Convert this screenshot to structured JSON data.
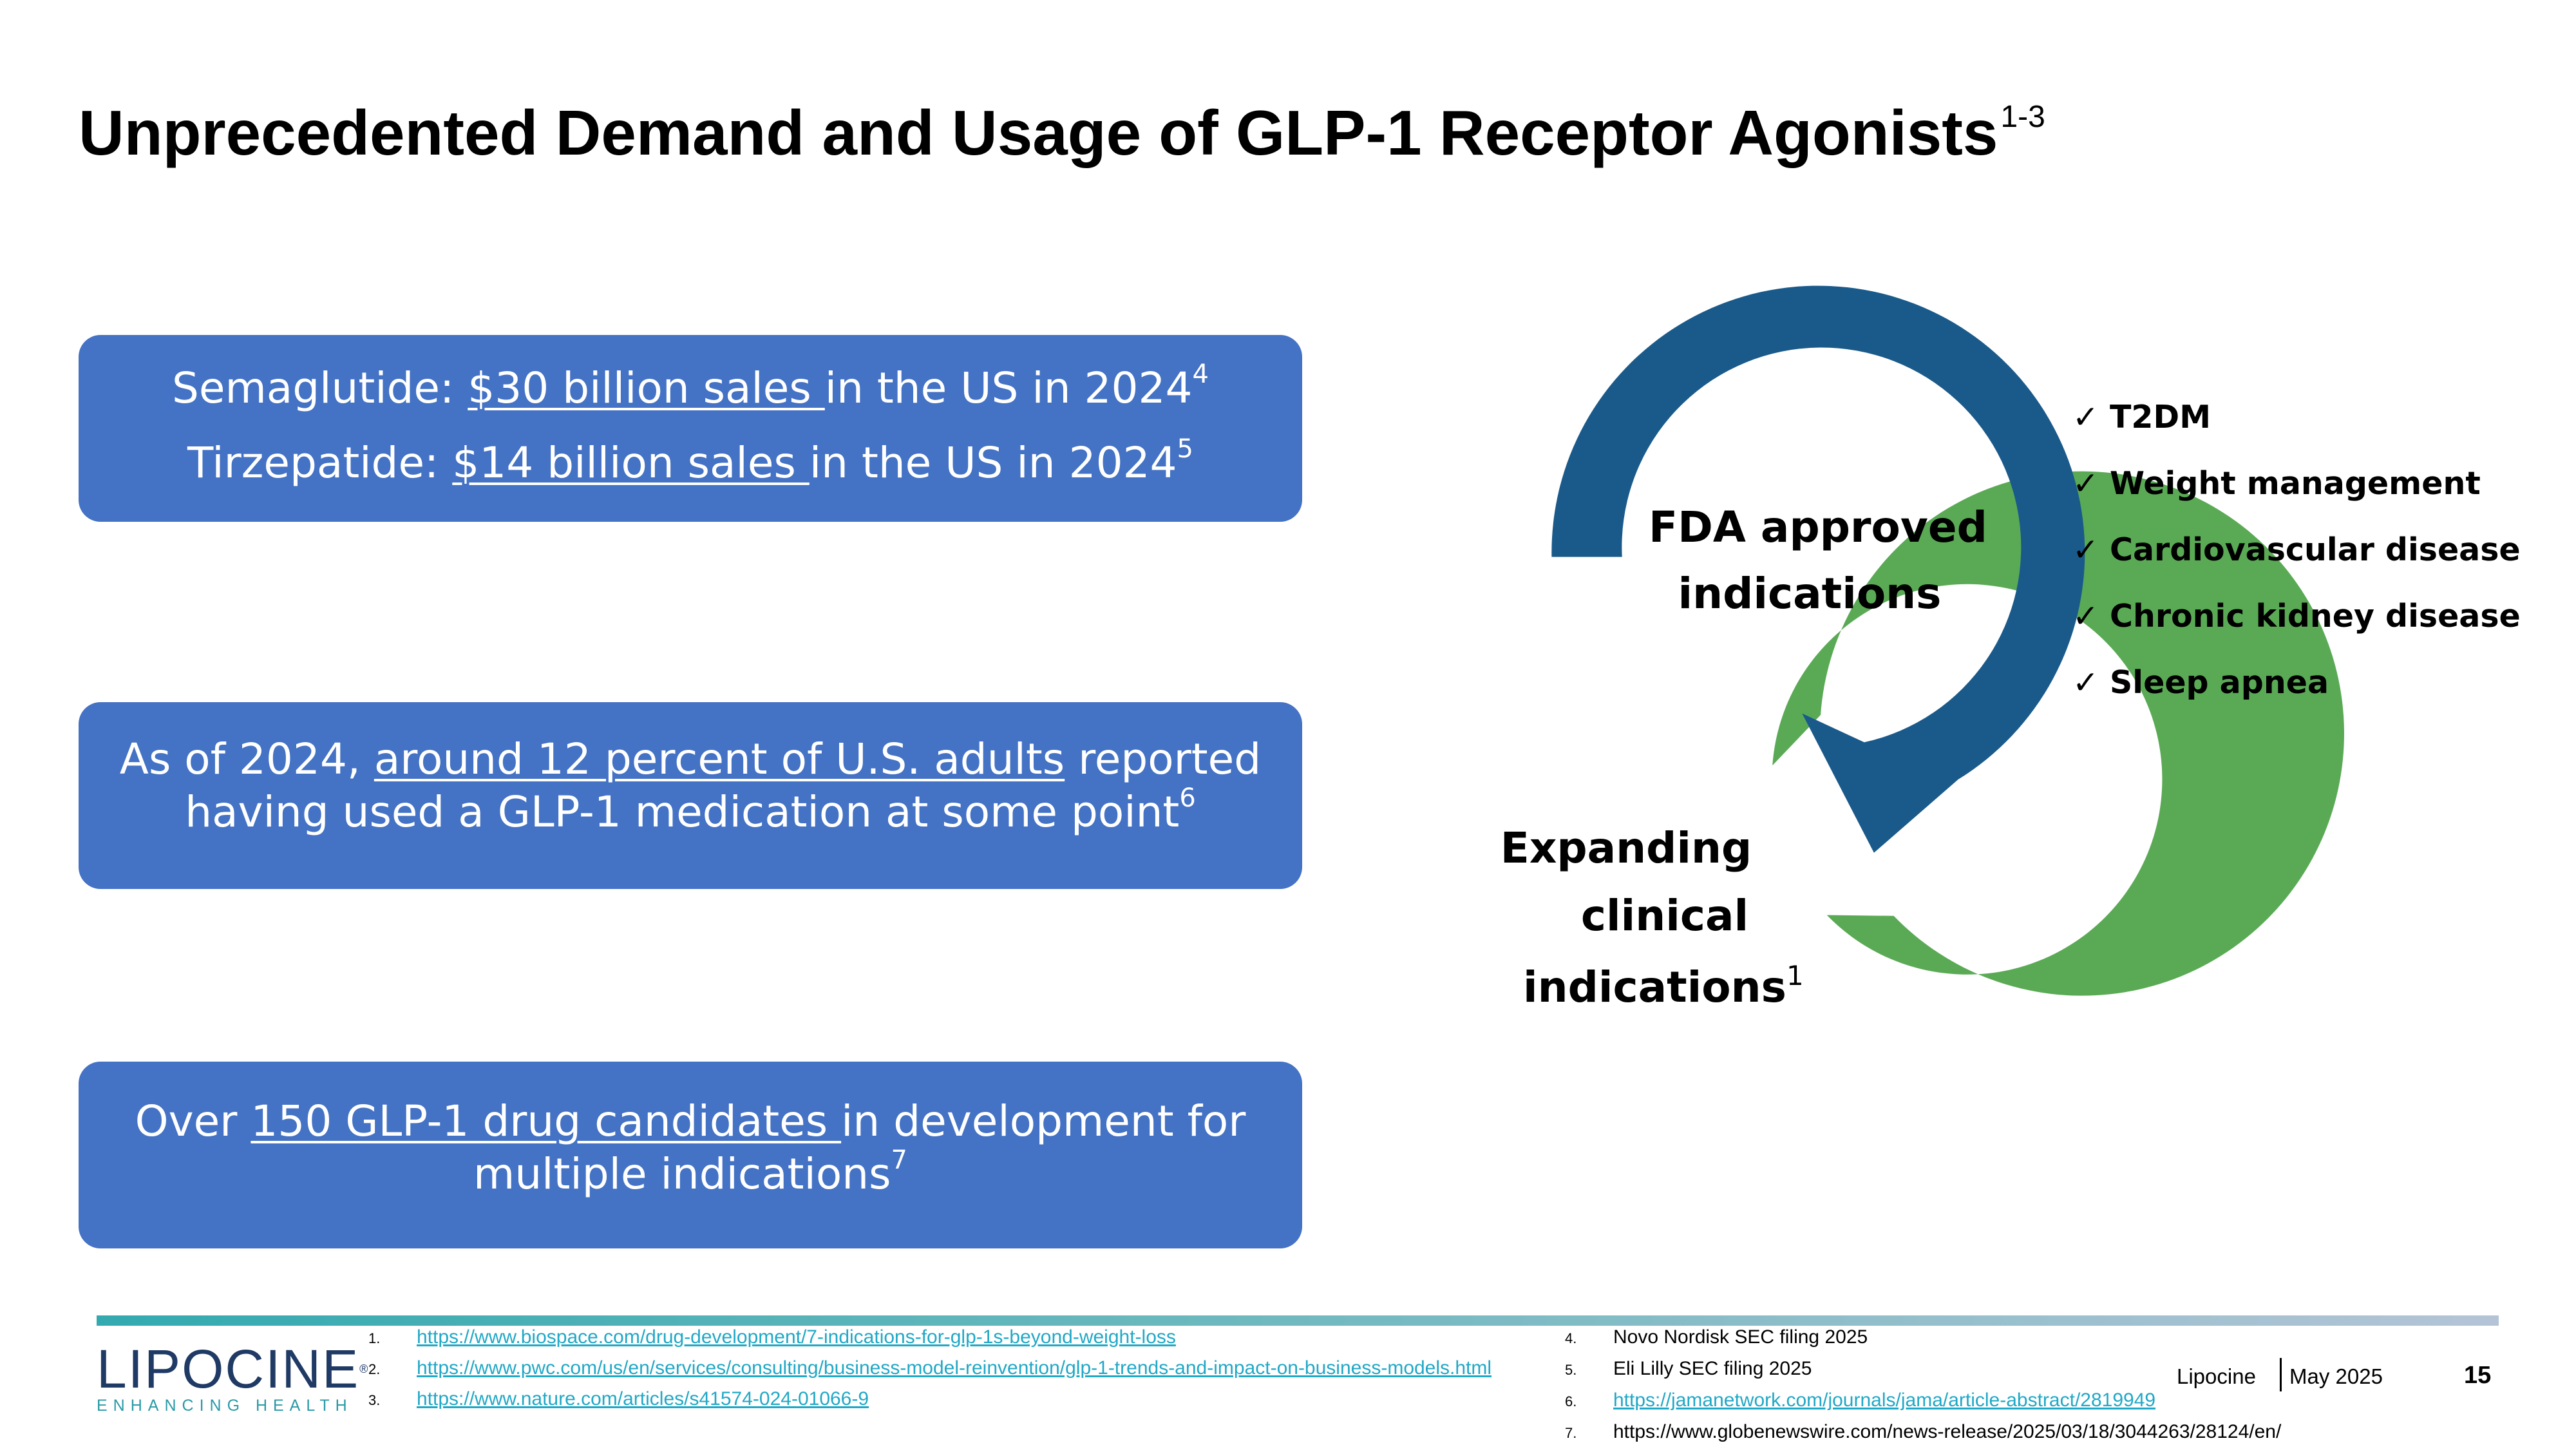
{
  "slide": {
    "title": "Unprecedented Demand and Usage of GLP-1 Receptor Agonists",
    "title_sup": "1-3",
    "page_number": "15"
  },
  "boxes": {
    "semaglutide": {
      "prefix": "Semaglutide: ",
      "link": "$30 billion sales ",
      "suffix": "in the US in 2024",
      "sup": "4"
    },
    "tirzepatide": {
      "prefix": "Tirzepatide: ",
      "link": "$14 billion sales ",
      "suffix": "in the US in 2024",
      "sup": "5"
    },
    "adults": {
      "prefix": "As of 2024, ",
      "link": "around 12 percent of U.S. adults",
      "suffix": " reported",
      "line2": "having used a GLP-1 medication at some point",
      "sup": "6"
    },
    "candidates": {
      "prefix": "Over ",
      "link": "150 GLP-1 drug candidates ",
      "suffix": "in development for",
      "line2": "multiple indications",
      "sup": "7"
    }
  },
  "diagram": {
    "fda_line1": "FDA approved",
    "fda_line2": "indications",
    "exp_line1": "Expanding",
    "exp_line2": "clinical",
    "exp_line3": "indications",
    "exp_sup": "1",
    "colors": {
      "blue_arrow": "#1A5A8A",
      "green_ring": "#5AAA55"
    }
  },
  "indications": [
    "T2DM",
    "Weight management",
    "Cardiovascular disease",
    "Chronic kidney disease",
    "Sleep apnea"
  ],
  "check_symbol": "✓",
  "references_left": [
    {
      "num": "1.",
      "text": "https://www.biospace.com/drug-development/7-indications-for-glp-1s-beyond-weight-loss"
    },
    {
      "num": "2.",
      "text": "https://www.pwc.com/us/en/services/consulting/business-model-reinvention/glp-1-trends-and-impact-on-business-models.html"
    },
    {
      "num": "3.",
      "text": "https://www.nature.com/articles/s41574-024-01066-9"
    }
  ],
  "references_right": [
    {
      "num": "4.",
      "text": "Novo Nordisk SEC filing 2025",
      "link": false
    },
    {
      "num": "5.",
      "text": "Eli Lilly SEC filing 2025",
      "link": false
    },
    {
      "num": "6.",
      "text": "https://jamanetwork.com/journals/jama/article-abstract/2819949",
      "link": true
    },
    {
      "num": "7.",
      "text": "https://www.globenewswire.com/news-release/2025/03/18/3044263/28124/en/",
      "link": false
    }
  ],
  "footer": {
    "logo_main": "LIPOCINE",
    "logo_reg": "®",
    "logo_sub": "ENHANCING HEALTH",
    "company": "Lipocine",
    "date": "May 2025"
  }
}
